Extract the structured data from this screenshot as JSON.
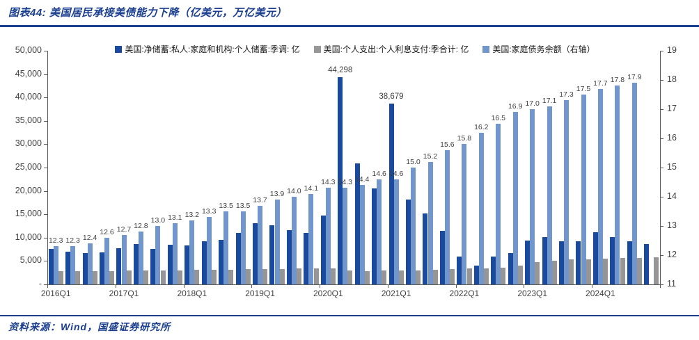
{
  "title": "图表44: 美国居民承接美债能力下降（亿美元，万亿美元）",
  "source": "资料来源：Wind，国盛证券研究所",
  "colors": {
    "accent": "#1b3f8f",
    "net_savings_bar": "#1a4a9d",
    "interest_bar": "#969696",
    "household_debt_bar": "#7096cb",
    "axis_text": "#3f3f3f",
    "axis_line": "#595959"
  },
  "legend": [
    {
      "label": "美国:净储蓄:私人:家庭和机构:个人储蓄:季调: 亿",
      "color": "#1a4a9d"
    },
    {
      "label": "美国:个人支出:个人利息支付:季合计: 亿",
      "color": "#969696"
    },
    {
      "label": "美国:家庭债务余额（右轴）",
      "color": "#7096cb"
    }
  ],
  "chart_data": {
    "type": "bar",
    "title": "图表44: 美国居民承接美债能力下降（亿美元，万亿美元）",
    "categories": [
      "2016Q1",
      "2016Q2",
      "2016Q3",
      "2016Q4",
      "2017Q1",
      "2017Q2",
      "2017Q3",
      "2017Q4",
      "2018Q1",
      "2018Q2",
      "2018Q3",
      "2018Q4",
      "2019Q1",
      "2019Q2",
      "2019Q3",
      "2019Q4",
      "2020Q1",
      "2020Q2",
      "2020Q3",
      "2020Q4",
      "2021Q1",
      "2021Q2",
      "2021Q3",
      "2021Q4",
      "2022Q1",
      "2022Q2",
      "2022Q3",
      "2022Q4",
      "2023Q1",
      "2023Q2",
      "2023Q3",
      "2023Q4",
      "2024Q1",
      "2024Q2",
      "2024Q3",
      "2024Q4"
    ],
    "x_axis_tick_labels": [
      "2016Q1",
      "2017Q1",
      "2018Q1",
      "2019Q1",
      "2020Q1",
      "2021Q1",
      "2022Q1",
      "2023Q1",
      "2024Q1"
    ],
    "left_axis": {
      "range": [
        0,
        50000
      ],
      "tick_labels": [
        "50,000",
        "45,000",
        "40,000",
        "35,000",
        "30,000",
        "25,000",
        "20,000",
        "15,000",
        "10,000",
        "5,000",
        "-"
      ]
    },
    "right_axis": {
      "range": [
        11,
        19
      ],
      "tick_labels": [
        "19",
        "18",
        "17",
        "16",
        "15",
        "14",
        "13",
        "12",
        "11"
      ]
    },
    "series": [
      {
        "name": "美国:净储蓄:私人:家庭和机构:个人储蓄:季调: 亿",
        "axis": "left",
        "color": "#1a4a9d",
        "values": [
          7600,
          7000,
          6700,
          6900,
          7800,
          8700,
          7600,
          8500,
          8400,
          9200,
          9500,
          11000,
          13100,
          12600,
          11600,
          11000,
          14700,
          44298,
          25900,
          20600,
          38679,
          18200,
          15200,
          11500,
          6000,
          4000,
          6000,
          6700,
          9400,
          10100,
          9300,
          9300,
          11200,
          10100,
          9300,
          8700
        ]
      },
      {
        "name": "美国:家庭债务余额（右轴）",
        "axis": "right",
        "color": "#7096cb",
        "values": [
          12.3,
          12.3,
          12.4,
          12.6,
          12.7,
          12.8,
          13.0,
          13.1,
          13.2,
          13.3,
          13.5,
          13.5,
          13.7,
          13.9,
          14.0,
          14.1,
          14.3,
          14.3,
          14.4,
          14.6,
          14.6,
          15.0,
          15.2,
          15.6,
          15.8,
          16.2,
          16.5,
          16.9,
          17.0,
          17.1,
          17.3,
          17.5,
          17.7,
          17.8,
          17.9,
          null
        ]
      },
      {
        "name": "美国:个人支出:个人利息支付:季合计: 亿",
        "axis": "left",
        "color": "#969696",
        "values": [
          2800,
          2850,
          2850,
          2900,
          2950,
          3000,
          3000,
          3050,
          3100,
          3150,
          3200,
          3250,
          3300,
          3350,
          3400,
          3400,
          3500,
          2950,
          2900,
          3000,
          3000,
          3050,
          3150,
          3300,
          3400,
          3500,
          3600,
          4000,
          4800,
          5100,
          5400,
          5400,
          5500,
          5600,
          5700,
          5800
        ]
      }
    ],
    "data_labels": {
      "household_debt_labels": [
        "12.3",
        "12.3",
        "12.4",
        "12.6",
        "12.7",
        "12.8",
        "13.0",
        "13.1",
        "13.2",
        "13.3",
        "13.5",
        "13.5",
        "13.7",
        "13.9",
        "14.0",
        "14.1",
        "14.3",
        "14.3",
        "14.4",
        "14.6",
        "14.6",
        "15.0",
        "15.2",
        "15.6",
        "15.8",
        "16.2",
        "16.5",
        "16.9",
        "17.0",
        "17.1",
        "17.3",
        "17.5",
        "17.7",
        "17.8",
        "17.9"
      ],
      "net_savings_callouts": [
        {
          "category": "2020Q2",
          "text": "44,298"
        },
        {
          "category": "2021Q1",
          "text": "38,679"
        }
      ]
    },
    "legend_position": "top",
    "grid": false
  }
}
